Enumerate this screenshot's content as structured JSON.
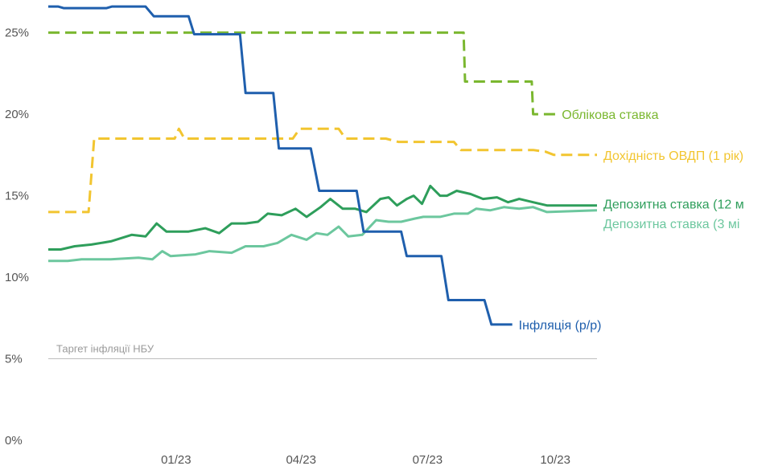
{
  "chart_data": {
    "type": "line",
    "title": "",
    "xlabel": "",
    "ylabel": "",
    "ylim": [
      0,
      27
    ],
    "x_range": [
      "2022-10-01",
      "2023-10-31"
    ],
    "y_ticks": [
      "0%",
      "5%",
      "10%",
      "15%",
      "20%",
      "25%"
    ],
    "x_ticks": [
      {
        "date": "2023-01-01",
        "label": "01/23"
      },
      {
        "date": "2023-04-01",
        "label": "04/23"
      },
      {
        "date": "2023-07-01",
        "label": "07/23"
      },
      {
        "date": "2023-10-01",
        "label": "10/23"
      }
    ],
    "annotation": {
      "text": "Таргет інфляції НБУ",
      "y": 5
    },
    "series": [
      {
        "name": "Облікова ставка",
        "color": "#7ab72f",
        "style": "dashed",
        "points": [
          [
            "2022-10-01",
            25
          ],
          [
            "2023-07-27",
            25
          ],
          [
            "2023-07-28",
            22
          ],
          [
            "2023-09-14",
            22
          ],
          [
            "2023-09-15",
            20
          ],
          [
            "2023-10-01",
            20
          ]
        ]
      },
      {
        "name": "Дохідність ОВДП (1 рік)",
        "color": "#f2c530",
        "style": "dashed",
        "points": [
          [
            "2022-10-01",
            14
          ],
          [
            "2022-10-30",
            14
          ],
          [
            "2022-11-03",
            18.5
          ],
          [
            "2022-12-25",
            18.5
          ],
          [
            "2022-12-31",
            18.5
          ],
          [
            "2023-01-03",
            19.1
          ],
          [
            "2023-01-07",
            18.5
          ],
          [
            "2023-03-26",
            18.5
          ],
          [
            "2023-03-31",
            19.1
          ],
          [
            "2023-04-28",
            19.1
          ],
          [
            "2023-05-03",
            18.5
          ],
          [
            "2023-06-01",
            18.5
          ],
          [
            "2023-06-10",
            18.3
          ],
          [
            "2023-07-20",
            18.3
          ],
          [
            "2023-07-25",
            17.8
          ],
          [
            "2023-09-15",
            17.8
          ],
          [
            "2023-09-24",
            17.7
          ],
          [
            "2023-09-30",
            17.5
          ],
          [
            "2023-10-31",
            17.5
          ]
        ]
      },
      {
        "name": "Депозитна ставка (12 м",
        "color": "#2e9e5b",
        "style": "solid",
        "points": [
          [
            "2022-10-01",
            11.7
          ],
          [
            "2022-10-10",
            11.7
          ],
          [
            "2022-10-20",
            11.9
          ],
          [
            "2022-11-01",
            12.0
          ],
          [
            "2022-11-15",
            12.2
          ],
          [
            "2022-11-30",
            12.6
          ],
          [
            "2022-12-10",
            12.5
          ],
          [
            "2022-12-18",
            13.3
          ],
          [
            "2022-12-25",
            12.8
          ],
          [
            "2023-01-10",
            12.8
          ],
          [
            "2023-01-22",
            13.0
          ],
          [
            "2023-02-01",
            12.7
          ],
          [
            "2023-02-10",
            13.3
          ],
          [
            "2023-02-20",
            13.3
          ],
          [
            "2023-03-01",
            13.4
          ],
          [
            "2023-03-08",
            13.9
          ],
          [
            "2023-03-18",
            13.8
          ],
          [
            "2023-03-28",
            14.2
          ],
          [
            "2023-04-05",
            13.7
          ],
          [
            "2023-04-15",
            14.3
          ],
          [
            "2023-04-22",
            14.8
          ],
          [
            "2023-05-01",
            14.2
          ],
          [
            "2023-05-10",
            14.2
          ],
          [
            "2023-05-18",
            14.0
          ],
          [
            "2023-05-28",
            14.8
          ],
          [
            "2023-06-03",
            14.9
          ],
          [
            "2023-06-09",
            14.4
          ],
          [
            "2023-06-16",
            14.8
          ],
          [
            "2023-06-21",
            15.0
          ],
          [
            "2023-06-27",
            14.5
          ],
          [
            "2023-07-03",
            15.6
          ],
          [
            "2023-07-10",
            15.0
          ],
          [
            "2023-07-15",
            15.0
          ],
          [
            "2023-07-22",
            15.3
          ],
          [
            "2023-08-01",
            15.1
          ],
          [
            "2023-08-10",
            14.8
          ],
          [
            "2023-08-20",
            14.9
          ],
          [
            "2023-08-28",
            14.6
          ],
          [
            "2023-09-05",
            14.8
          ],
          [
            "2023-09-15",
            14.6
          ],
          [
            "2023-09-25",
            14.4
          ],
          [
            "2023-10-31",
            14.4
          ]
        ]
      },
      {
        "name": "Депозитна ставка (3 мі",
        "color": "#6cc79e",
        "style": "solid",
        "points": [
          [
            "2022-10-01",
            11.0
          ],
          [
            "2022-10-15",
            11.0
          ],
          [
            "2022-10-25",
            11.1
          ],
          [
            "2022-11-15",
            11.1
          ],
          [
            "2022-12-05",
            11.2
          ],
          [
            "2022-12-15",
            11.1
          ],
          [
            "2022-12-22",
            11.6
          ],
          [
            "2022-12-28",
            11.3
          ],
          [
            "2023-01-15",
            11.4
          ],
          [
            "2023-01-25",
            11.6
          ],
          [
            "2023-02-10",
            11.5
          ],
          [
            "2023-02-20",
            11.9
          ],
          [
            "2023-03-05",
            11.9
          ],
          [
            "2023-03-15",
            12.1
          ],
          [
            "2023-03-25",
            12.6
          ],
          [
            "2023-04-05",
            12.3
          ],
          [
            "2023-04-12",
            12.7
          ],
          [
            "2023-04-20",
            12.6
          ],
          [
            "2023-04-28",
            13.1
          ],
          [
            "2023-05-05",
            12.5
          ],
          [
            "2023-05-15",
            12.6
          ],
          [
            "2023-05-25",
            13.5
          ],
          [
            "2023-06-03",
            13.4
          ],
          [
            "2023-06-12",
            13.4
          ],
          [
            "2023-06-22",
            13.6
          ],
          [
            "2023-06-28",
            13.7
          ],
          [
            "2023-07-10",
            13.7
          ],
          [
            "2023-07-20",
            13.9
          ],
          [
            "2023-07-30",
            13.9
          ],
          [
            "2023-08-05",
            14.2
          ],
          [
            "2023-08-15",
            14.1
          ],
          [
            "2023-08-25",
            14.3
          ],
          [
            "2023-09-05",
            14.2
          ],
          [
            "2023-09-15",
            14.3
          ],
          [
            "2023-09-25",
            14.0
          ],
          [
            "2023-10-31",
            14.1
          ]
        ]
      },
      {
        "name": "Інфляція (р/р)",
        "color": "#1f5fad",
        "style": "solid",
        "points": [
          [
            "2022-10-01",
            26.6
          ],
          [
            "2022-10-08",
            26.6
          ],
          [
            "2022-10-12",
            26.5
          ],
          [
            "2022-11-12",
            26.5
          ],
          [
            "2022-11-16",
            26.6
          ],
          [
            "2022-12-10",
            26.6
          ],
          [
            "2022-12-16",
            26.0
          ],
          [
            "2023-01-10",
            26.0
          ],
          [
            "2023-01-14",
            24.9
          ],
          [
            "2023-02-08",
            24.9
          ],
          [
            "2023-02-12",
            24.9
          ],
          [
            "2023-02-16",
            24.9
          ],
          [
            "2023-02-20",
            21.3
          ],
          [
            "2023-03-12",
            21.3
          ],
          [
            "2023-03-16",
            17.9
          ],
          [
            "2023-04-08",
            17.9
          ],
          [
            "2023-04-14",
            15.3
          ],
          [
            "2023-05-11",
            15.3
          ],
          [
            "2023-05-16",
            12.8
          ],
          [
            "2023-06-12",
            12.8
          ],
          [
            "2023-06-16",
            11.3
          ],
          [
            "2023-07-11",
            11.3
          ],
          [
            "2023-07-16",
            8.6
          ],
          [
            "2023-08-11",
            8.6
          ],
          [
            "2023-08-16",
            7.1
          ],
          [
            "2023-08-31",
            7.1
          ]
        ]
      }
    ],
    "legend": "line-end labels"
  }
}
